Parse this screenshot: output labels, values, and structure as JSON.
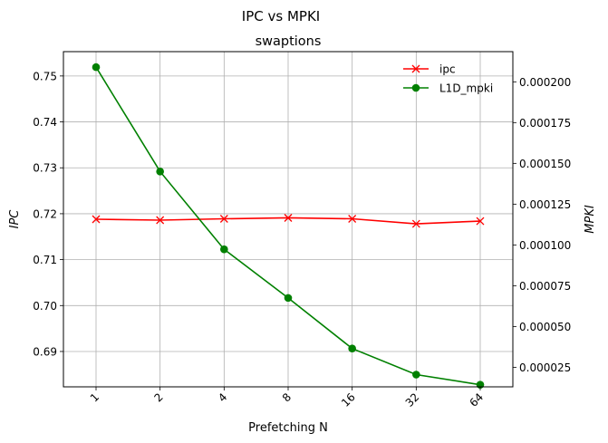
{
  "chart_data": {
    "type": "line",
    "suptitle": "IPC vs MPKI",
    "title": "swaptions",
    "xlabel": "Prefetching N",
    "ylabel_left": "IPC",
    "ylabel_right": "MPKI",
    "categories": [
      "1",
      "2",
      "4",
      "8",
      "16",
      "32",
      "64"
    ],
    "y_left": {
      "lim": [
        0.6823,
        0.7553
      ],
      "ticks": [
        0.69,
        0.7,
        0.71,
        0.72,
        0.73,
        0.74,
        0.75
      ],
      "tick_labels": [
        "0.69",
        "0.70",
        "0.71",
        "0.72",
        "0.73",
        "0.74",
        "0.75"
      ]
    },
    "y_right": {
      "lim": [
        1.3e-05,
        0.0002185
      ],
      "ticks": [
        2.5e-05,
        5e-05,
        7.5e-05,
        0.0001,
        0.000125,
        0.00015,
        0.000175,
        0.0002
      ],
      "tick_labels": [
        "0.000025",
        "0.000050",
        "0.000075",
        "0.000100",
        "0.000125",
        "0.000150",
        "0.000175",
        "0.000200"
      ]
    },
    "series": [
      {
        "name": "ipc",
        "axis": "left",
        "marker": "x",
        "color": "#ff0000",
        "values": [
          0.7188,
          0.7186,
          0.7189,
          0.7191,
          0.7189,
          0.7178,
          0.7184
        ]
      },
      {
        "name": "L1D_mpki",
        "axis": "right",
        "marker": "o",
        "color": "#008000",
        "values": [
          0.000209,
          0.000145,
          9.73e-05,
          6.75e-05,
          3.65e-05,
          2.05e-05,
          1.43e-05
        ]
      }
    ],
    "grid": true,
    "legend_position": "top-right"
  }
}
